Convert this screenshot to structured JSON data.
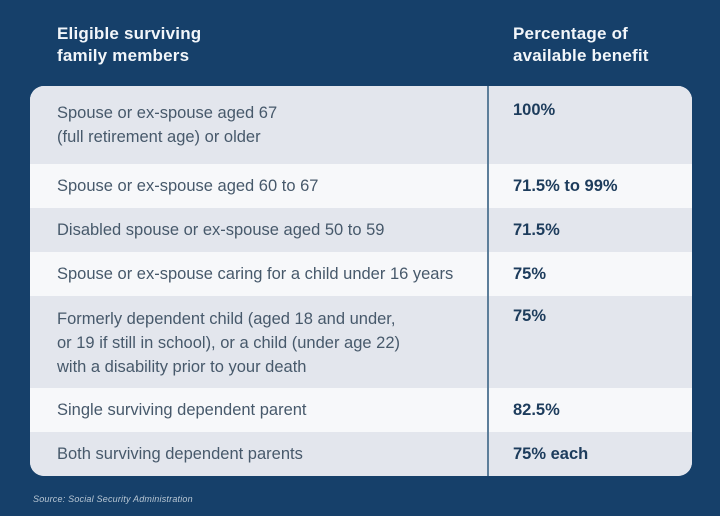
{
  "header": {
    "members_label": "Eligible surviving\nfamily members",
    "benefit_label": "Percentage of\navailable benefit"
  },
  "table": {
    "rows": [
      {
        "member": "Spouse or ex-spouse aged 67\n(full retirement age) or older",
        "benefit": "100%"
      },
      {
        "member": "Spouse or ex-spouse aged 60 to 67",
        "benefit": "71.5% to 99%"
      },
      {
        "member": "Disabled spouse or ex-spouse aged 50 to 59",
        "benefit": "71.5%"
      },
      {
        "member": "Spouse or ex-spouse caring for a child under 16 years",
        "benefit": "75%"
      },
      {
        "member": "Formerly dependent child (aged 18 and under,\nor 19 if still in school), or a child (under age 22)\nwith a disability prior to your death",
        "benefit": "75%"
      },
      {
        "member": "Single surviving dependent parent",
        "benefit": "82.5%"
      },
      {
        "member": "Both surviving dependent parents",
        "benefit": "75% each"
      }
    ]
  },
  "footer": {
    "source": "Source: Social Security Administration"
  },
  "colors": {
    "background": "#16406a",
    "row_alt": "#e3e6ed",
    "row_base": "#f7f8fa",
    "divider": "#5d7e9a",
    "member_text": "#47596b",
    "benefit_text": "#1d3c5c",
    "header_text": "#f2f6fa",
    "source_text": "#b9c7d4"
  },
  "chart_data": {
    "type": "table",
    "title": "",
    "columns": [
      "Eligible surviving family members",
      "Percentage of available benefit"
    ],
    "rows": [
      [
        "Spouse or ex-spouse aged 67 (full retirement age) or older",
        "100%"
      ],
      [
        "Spouse or ex-spouse aged 60 to 67",
        "71.5% to 99%"
      ],
      [
        "Disabled spouse or ex-spouse aged 50 to 59",
        "71.5%"
      ],
      [
        "Spouse or ex-spouse caring for a child under 16 years",
        "75%"
      ],
      [
        "Formerly dependent child (aged 18 and under, or 19 if still in school), or a child (under age 22) with a disability prior to your death",
        "75%"
      ],
      [
        "Single surviving dependent parent",
        "82.5%"
      ],
      [
        "Both surviving dependent parents",
        "75% each"
      ]
    ],
    "source": "Source: Social Security Administration",
    "layout_hints": {
      "zebra_striping": true,
      "column_divider": true,
      "dark_background": true
    }
  }
}
